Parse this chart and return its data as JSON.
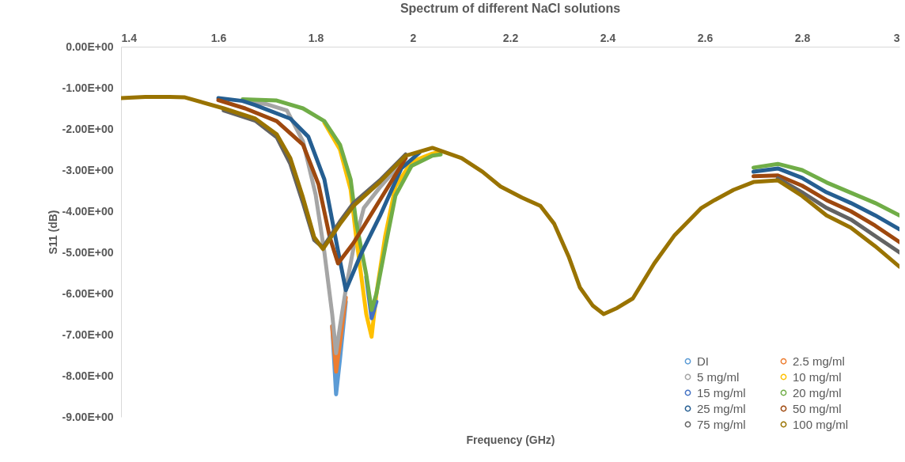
{
  "chart_data": {
    "type": "line",
    "title": "Spectrum of different NaCl solutions",
    "xlabel": "Frequency (GHz)",
    "ylabel": "S11 (dB)",
    "xlim": [
      1.4,
      3
    ],
    "xticks": [
      1.4,
      1.6,
      1.8,
      2,
      2.2,
      2.4,
      2.6,
      2.8,
      3
    ],
    "ylim": [
      -9,
      0
    ],
    "yticks": [
      {
        "value": 0,
        "label": "0.00E+00"
      },
      {
        "value": -1,
        "label": "-1.00E+00"
      },
      {
        "value": -2,
        "label": "-2.00E+00"
      },
      {
        "value": -3,
        "label": "-3.00E+00"
      },
      {
        "value": -4,
        "label": "-4.00E+00"
      },
      {
        "value": -5,
        "label": "-5.00E+00"
      },
      {
        "value": -6,
        "label": "-6.00E+00"
      },
      {
        "value": -7,
        "label": "-7.00E+00"
      },
      {
        "value": -8,
        "label": "-8.00E+00"
      },
      {
        "value": -9,
        "label": "-9.00E+00"
      }
    ],
    "grid": false,
    "legend": "bottom right",
    "line_style": "solid",
    "series": [
      {
        "name": "DI",
        "color": "#5b9bd5",
        "x": [
          1.834,
          1.842,
          1.85,
          1.862
        ],
        "values": [
          -6.8,
          -8.45,
          -7.6,
          -6.2
        ]
      },
      {
        "name": "2.5 mg/ml",
        "color": "#ed7d31",
        "x": [
          1.834,
          1.842,
          1.85,
          1.862
        ],
        "values": [
          -6.8,
          -7.9,
          -7.2,
          -6.1
        ]
      },
      {
        "name": "5 mg/ml",
        "color": "#a5a5a5",
        "x": [
          1.65,
          1.7,
          1.741,
          1.774,
          1.8,
          1.818,
          1.834,
          1.842,
          1.85,
          1.862,
          1.878,
          1.899,
          1.932,
          1.985
        ],
        "values": [
          -1.32,
          -1.4,
          -1.55,
          -2.3,
          -3.6,
          -5.0,
          -6.5,
          -7.45,
          -6.8,
          -5.9,
          -4.88,
          -3.92,
          -3.42,
          -2.71
        ]
      },
      {
        "name": "10 mg/ml",
        "color": "#ffc000",
        "x": [
          1.818,
          1.85,
          1.872,
          1.883,
          1.904,
          1.915,
          1.925,
          1.943,
          1.964,
          1.997,
          2.04,
          2.057
        ],
        "values": [
          -1.85,
          -2.5,
          -3.48,
          -4.6,
          -6.5,
          -7.05,
          -6.0,
          -4.6,
          -3.4,
          -2.8,
          -2.6,
          -2.55
        ]
      },
      {
        "name": "15 mg/ml",
        "color": "#4472c4",
        "x": [
          1.904,
          1.915,
          1.925
        ],
        "values": [
          -5.6,
          -6.6,
          -6.2
        ]
      },
      {
        "name": "20 mg/ml",
        "color": "#70ad47",
        "x": [
          1.65,
          1.72,
          1.774,
          1.818,
          1.85,
          1.872,
          1.883,
          1.904,
          1.915,
          1.925,
          1.943,
          1.964,
          1.997,
          2.04,
          2.057,
          2.1,
          2.659,
          2.7,
          2.75,
          2.8,
          2.85,
          2.9,
          2.95,
          3
        ],
        "values": [
          -1.28,
          -1.31,
          -1.5,
          -1.81,
          -2.38,
          -3.23,
          -4.25,
          -5.54,
          -6.4,
          -6.0,
          -4.88,
          -3.62,
          -2.9,
          -2.65,
          -2.62,
          null,
          null,
          -2.94,
          -2.85,
          -3.0,
          -3.3,
          -3.55,
          -3.8,
          -4.1
        ]
      },
      {
        "name": "25 mg/ml",
        "color": "#255e91",
        "x": [
          1.6,
          1.65,
          1.676,
          1.748,
          1.785,
          1.818,
          1.846,
          1.862,
          1.894,
          1.932,
          1.976,
          2.013,
          2.04,
          2.659,
          2.7,
          2.75,
          2.8,
          2.85,
          2.9,
          2.95,
          3
        ],
        "values": [
          -1.25,
          -1.32,
          -1.42,
          -1.75,
          -2.19,
          -3.23,
          -4.96,
          -5.92,
          -5.02,
          -4.12,
          -2.96,
          -2.58,
          null,
          null,
          -3.04,
          -2.96,
          -3.19,
          -3.54,
          -3.8,
          -4.1,
          -4.44
        ]
      },
      {
        "name": "50 mg/ml",
        "color": "#9e480e",
        "x": [
          1.6,
          1.655,
          1.72,
          1.774,
          1.806,
          1.829,
          1.846,
          1.878,
          1.932,
          1.985,
          2.04,
          2.659,
          2.7,
          2.75,
          2.8,
          2.85,
          2.9,
          2.95,
          3
        ],
        "values": [
          -1.3,
          -1.5,
          -1.81,
          -2.38,
          -3.35,
          -4.63,
          -5.27,
          -4.77,
          -3.73,
          -2.71,
          null,
          null,
          -3.15,
          -3.13,
          -3.38,
          -3.73,
          -4.0,
          -4.35,
          -4.75
        ]
      },
      {
        "name": "75 mg/ml",
        "color": "#636363",
        "x": [
          1.611,
          1.676,
          1.72,
          1.748,
          1.774,
          1.797,
          1.815,
          1.85,
          1.878,
          1.932,
          1.985,
          2.04,
          2.7,
          2.75,
          2.8,
          2.85,
          2.9,
          2.95,
          3
        ],
        "values": [
          -1.55,
          -1.8,
          -2.2,
          -2.85,
          -3.8,
          -4.7,
          -4.88,
          -4.25,
          -3.8,
          -3.25,
          -2.62,
          null,
          null,
          -3.2,
          -3.54,
          -3.92,
          -4.2,
          -4.6,
          -5.0
        ]
      },
      {
        "name": "100 mg/ml",
        "color": "#997300",
        "x": [
          1.4,
          1.45,
          1.5,
          1.53,
          1.611,
          1.676,
          1.72,
          1.748,
          1.774,
          1.797,
          1.815,
          1.85,
          1.878,
          1.932,
          1.985,
          2.04,
          2.1,
          2.143,
          2.18,
          2.224,
          2.262,
          2.29,
          2.32,
          2.343,
          2.37,
          2.392,
          2.42,
          2.452,
          2.496,
          2.538,
          2.593,
          2.62,
          2.659,
          2.7,
          2.75,
          2.8,
          2.85,
          2.9,
          2.95,
          3
        ],
        "values": [
          -1.25,
          -1.22,
          -1.22,
          -1.23,
          -1.5,
          -1.75,
          -2.13,
          -2.71,
          -3.67,
          -4.63,
          -4.92,
          -4.31,
          -3.87,
          -3.29,
          -2.65,
          -2.46,
          -2.71,
          -3.04,
          -3.4,
          -3.67,
          -3.87,
          -4.3,
          -5.1,
          -5.85,
          -6.3,
          -6.5,
          -6.35,
          -6.12,
          -5.27,
          -4.58,
          -3.92,
          -3.73,
          -3.48,
          -3.29,
          -3.25,
          -3.63,
          -4.1,
          -4.4,
          -4.85,
          -5.35
        ]
      }
    ]
  }
}
